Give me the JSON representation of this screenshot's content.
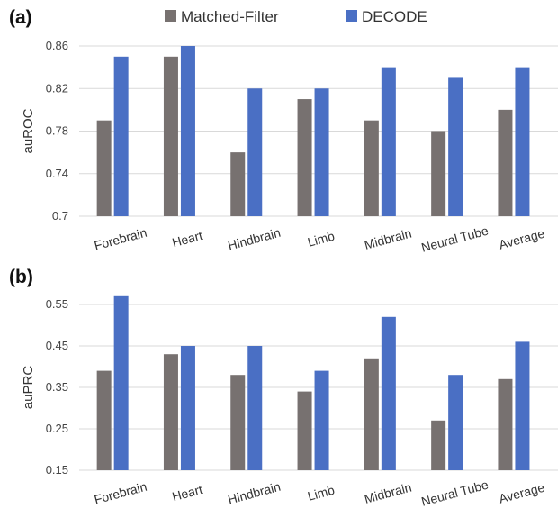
{
  "legend": [
    {
      "name": "Matched-Filter",
      "color": "#777170"
    },
    {
      "name": "DECODE",
      "color": "#4a6fc4"
    }
  ],
  "chart_data": [
    {
      "panel": "(a)",
      "type": "bar",
      "ylabel": "auROC",
      "ylim": [
        0.7,
        0.86
      ],
      "yticks": [
        "0.7",
        "0.74",
        "0.78",
        "0.82",
        "0.86"
      ],
      "categories": [
        "Forebrain",
        "Heart",
        "Hindbrain",
        "Limb",
        "Midbrain",
        "Neural Tube",
        "Average"
      ],
      "series": [
        {
          "name": "Matched-Filter",
          "color": "#777170",
          "values": [
            0.79,
            0.85,
            0.76,
            0.81,
            0.79,
            0.78,
            0.8
          ]
        },
        {
          "name": "DECODE",
          "color": "#4a6fc4",
          "values": [
            0.85,
            0.86,
            0.82,
            0.82,
            0.84,
            0.83,
            0.84
          ]
        }
      ],
      "grid": true
    },
    {
      "panel": "(b)",
      "type": "bar",
      "ylabel": "auPRC",
      "ylim": [
        0.15,
        0.55
      ],
      "yticks": [
        "0.15",
        "0.25",
        "0.35",
        "0.45",
        "0.55"
      ],
      "categories": [
        "Forebrain",
        "Heart",
        "Hindbrain",
        "Limb",
        "Midbrain",
        "Neural Tube",
        "Average"
      ],
      "series": [
        {
          "name": "Matched-Filter",
          "color": "#777170",
          "values": [
            0.39,
            0.43,
            0.38,
            0.34,
            0.42,
            0.27,
            0.37
          ]
        },
        {
          "name": "DECODE",
          "color": "#4a6fc4",
          "values": [
            0.57,
            0.45,
            0.45,
            0.39,
            0.52,
            0.38,
            0.46
          ]
        }
      ],
      "grid": true
    }
  ]
}
